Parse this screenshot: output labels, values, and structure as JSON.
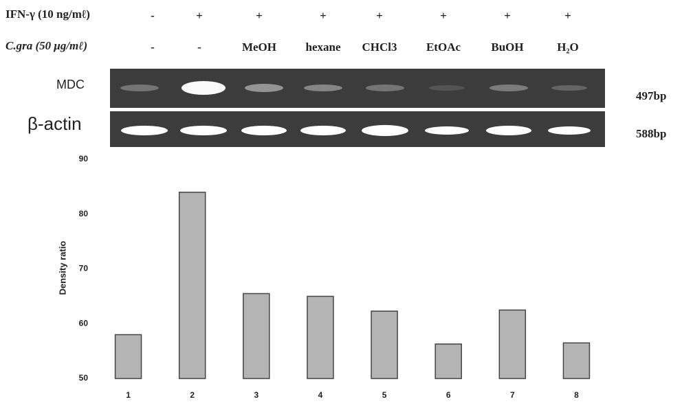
{
  "header": {
    "rows": [
      {
        "label": "IFN-γ (10 ng/mℓ)",
        "values": [
          "-",
          "+",
          "+",
          "+",
          "+",
          "+",
          "+",
          "+"
        ]
      },
      {
        "label": "C.gra (50 μg/mℓ)",
        "values": [
          "-",
          "-",
          "MeOH",
          "hexane",
          "CHCl3",
          "EtOAc",
          "BuOH",
          "H₂O"
        ]
      }
    ]
  },
  "gel": {
    "rows": [
      {
        "label": "MDC",
        "size": "497bp"
      },
      {
        "label": "β-actin",
        "size": "588bp"
      }
    ]
  },
  "chart_data": {
    "type": "bar",
    "y_label": "Density ratio",
    "categories": [
      "1",
      "2",
      "3",
      "4",
      "5",
      "6",
      "7",
      "8"
    ],
    "values": [
      58.0,
      84.0,
      65.5,
      65.0,
      62.3,
      56.3,
      62.5,
      56.5
    ],
    "color": "#b4b4b4",
    "ylim": [
      50,
      90
    ],
    "yticks": [
      50,
      60,
      70,
      80,
      90
    ],
    "grid": false
  }
}
